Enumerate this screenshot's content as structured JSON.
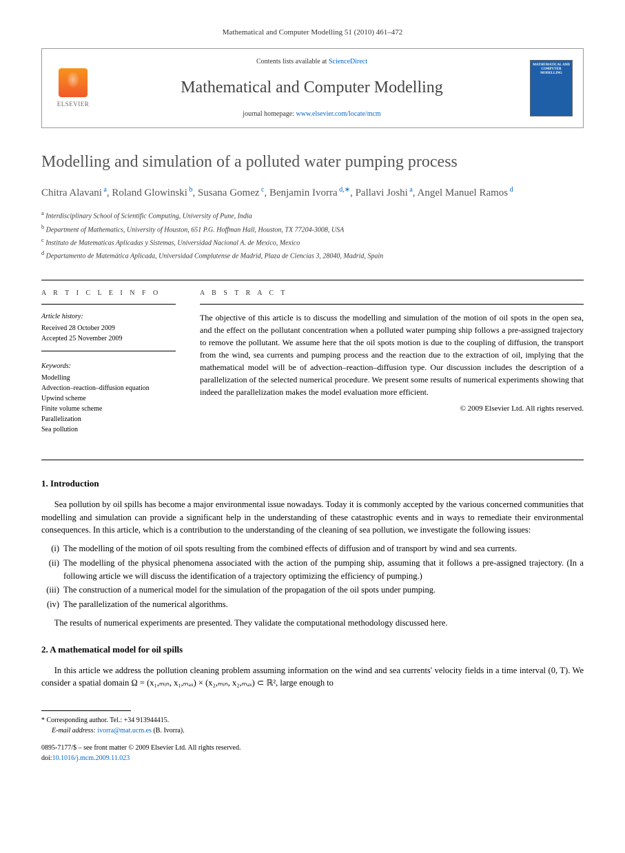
{
  "citation": "Mathematical and Computer Modelling 51 (2010) 461–472",
  "header": {
    "contents_prefix": "Contents lists available at ",
    "contents_link": "ScienceDirect",
    "journal_name": "Mathematical and Computer Modelling",
    "homepage_prefix": "journal homepage: ",
    "homepage_link": "www.elsevier.com/locate/mcm",
    "publisher_label": "ELSEVIER",
    "cover_title": "MATHEMATICAL AND COMPUTER MODELLING"
  },
  "title": "Modelling and simulation of a polluted water pumping process",
  "authors_html": "Chitra Alavani <sup>a</sup>, Roland Glowinski <sup>b</sup>, Susana Gomez <sup>c</sup>, Benjamin Ivorra <sup>d,</sup>*, Pallavi Joshi <sup>a</sup>, Angel Manuel Ramos <sup>d</sup>",
  "affiliations": [
    {
      "sup": "a",
      "text": "Interdisciplinary School of Scientific Computing, University of Pune, India"
    },
    {
      "sup": "b",
      "text": "Department of Mathematics, University of Houston, 651 P.G. Hoffman Hall, Houston, TX 77204-3008, USA"
    },
    {
      "sup": "c",
      "text": "Instituto de Matematicas Aplicadas y Sistemas, Universidad Nacional A. de Mexico, Mexico"
    },
    {
      "sup": "d",
      "text": "Departamento de Matemática Aplicada, Universidad Complutense de Madrid, Plaza de Ciencias 3, 28040, Madrid, Spain"
    }
  ],
  "info": {
    "heading": "A R T I C L E   I N F O",
    "history_label": "Article history:",
    "received": "Received 28 October 2009",
    "accepted": "Accepted 25 November 2009",
    "keywords_label": "Keywords:",
    "keywords": [
      "Modelling",
      "Advection–reaction–diffusion equation",
      "Upwind scheme",
      "Finite volume scheme",
      "Parallelization",
      "Sea pollution"
    ]
  },
  "abstract": {
    "heading": "A B S T R A C T",
    "text": "The objective of this article is to discuss the modelling and simulation of the motion of oil spots in the open sea, and the effect on the pollutant concentration when a polluted water pumping ship follows a pre-assigned trajectory to remove the pollutant. We assume here that the oil spots motion is due to the coupling of diffusion, the transport from the wind, sea currents and pumping process and the reaction due to the extraction of oil, implying that the mathematical model will be of advection–reaction–diffusion type. Our discussion includes the description of a parallelization of the selected numerical procedure. We present some results of numerical experiments showing that indeed the parallelization makes the model evaluation more efficient.",
    "copyright": "© 2009 Elsevier Ltd. All rights reserved."
  },
  "sections": {
    "intro_heading": "1. Introduction",
    "intro_p1": "Sea pollution by oil spills has become a major environmental issue nowadays. Today it is commonly accepted by the various concerned communities that modelling and simulation can provide a significant help in the understanding of these catastrophic events and in ways to remediate their environmental consequences. In this article, which is a contribution to the understanding of the cleaning of sea pollution, we investigate the following issues:",
    "list": [
      {
        "m": "(i)",
        "t": "The modelling of the motion of oil spots resulting from the combined effects of diffusion and of transport by wind and sea currents."
      },
      {
        "m": "(ii)",
        "t": "The modelling of the physical phenomena associated with the action of the pumping ship, assuming that it follows a pre-assigned trajectory. (In a following article we will discuss the identification of a trajectory optimizing the efficiency of pumping.)"
      },
      {
        "m": "(iii)",
        "t": "The construction of a numerical model for the simulation of the propagation of the oil spots under pumping."
      },
      {
        "m": "(iv)",
        "t": "The parallelization of the numerical algorithms."
      }
    ],
    "intro_p2": "The results of numerical experiments are presented. They validate the computational methodology discussed here.",
    "model_heading": "2. A mathematical model for oil spills",
    "model_p1": "In this article we address the pollution cleaning problem assuming information on the wind and sea currents' velocity fields in a time interval (0, T). We consider a spatial domain Ω = (x₁,ₘᵢₙ, x₁,ₘₐₓ) × (x₂,ₘᵢₙ, x₂,ₘₐₓ) ⊂ ℝ², large enough to"
  },
  "footnote": {
    "corr_prefix": "* Corresponding author. Tel.: +34 913944415.",
    "email_label": "E-mail address:",
    "email": "ivorra@mat.ucm.es",
    "email_who": "(B. Ivorra)."
  },
  "footer": {
    "line1": "0895-7177/$ – see front matter © 2009 Elsevier Ltd. All rights reserved.",
    "doi_label": "doi:",
    "doi": "10.1016/j.mcm.2009.11.023"
  }
}
